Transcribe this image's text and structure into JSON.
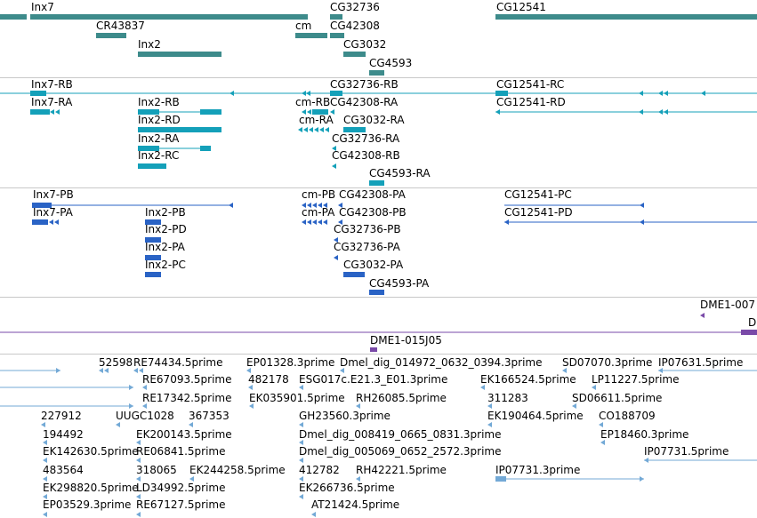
{
  "tracks": {
    "genes": {
      "color": "#3d8b8b",
      "labels": [
        "Inx7",
        "CG32736",
        "CG12541",
        "CR43837",
        "cm",
        "CG42308",
        "Inx2",
        "CG3032",
        "CG4593"
      ]
    },
    "transcripts_a": {
      "color": "#14a0b9",
      "labels": [
        "Inx7-RB",
        "CG32736-RB",
        "CG12541-RC",
        "Inx7-RA",
        "Inx2-RB",
        "cm-RB",
        "CG42308-RA",
        "CG12541-RD",
        "Inx2-RD",
        "cm-RA",
        "CG3032-RA",
        "Inx2-RA",
        "CG32736-RA",
        "Inx2-RC",
        "CG42308-RB",
        "CG4593-RA"
      ]
    },
    "transcripts_b": {
      "color": "#2a63c5",
      "labels": [
        "Inx7-PB",
        "cm-PB",
        "CG42308-PA",
        "CG12541-PC",
        "Inx7-PA",
        "Inx2-PB",
        "cm-PA",
        "CG42308-PB",
        "CG12541-PD",
        "Inx2-PD",
        "CG32736-PB",
        "Inx2-PA",
        "CG32736-PA",
        "Inx2-PC",
        "CG3032-PA",
        "CG4593-PA"
      ]
    },
    "probes": {
      "color": "#7a4aa8",
      "labels": [
        "DME1-007",
        "D",
        "DME1-015J05"
      ]
    },
    "ests": {
      "color": "#73a9d6",
      "labels": [
        "52598",
        "RE74434.5prime",
        "EP01328.3prime",
        "Dmel_dig_014972_0632_0394.3prime",
        "SD07070.3prime",
        "IP07631.5prime",
        "RE67093.5prime",
        "482178",
        "ESG017c.E21.3_E01.3prime",
        "EK166524.5prime",
        "LP11227.5prime",
        "RE17342.5prime",
        "EK035901.5prime",
        "RH26085.5prime",
        "311283",
        "SD06611.5prime",
        "227912",
        "UUGC1028",
        "367353",
        "GH23560.3prime",
        "EK190464.5prime",
        "CO188709",
        "194492",
        "EK200143.5prime",
        "Dmel_dig_008419_0665_0831.3prime",
        "EP18460.3prime",
        "EK142630.5prime",
        "RE06841.5prime",
        "Dmel_dig_005069_0652_2572.3prime",
        "IP07731.5prime",
        "483564",
        "318065",
        "EK244258.5prime",
        "412782",
        "RH42221.5prime",
        "IP07731.3prime",
        "EK298820.5prime",
        "LD34992.5prime",
        "EK266736.5prime",
        "EP03529.3prime",
        "RE67127.5prime",
        "AT21424.5prime"
      ]
    }
  }
}
